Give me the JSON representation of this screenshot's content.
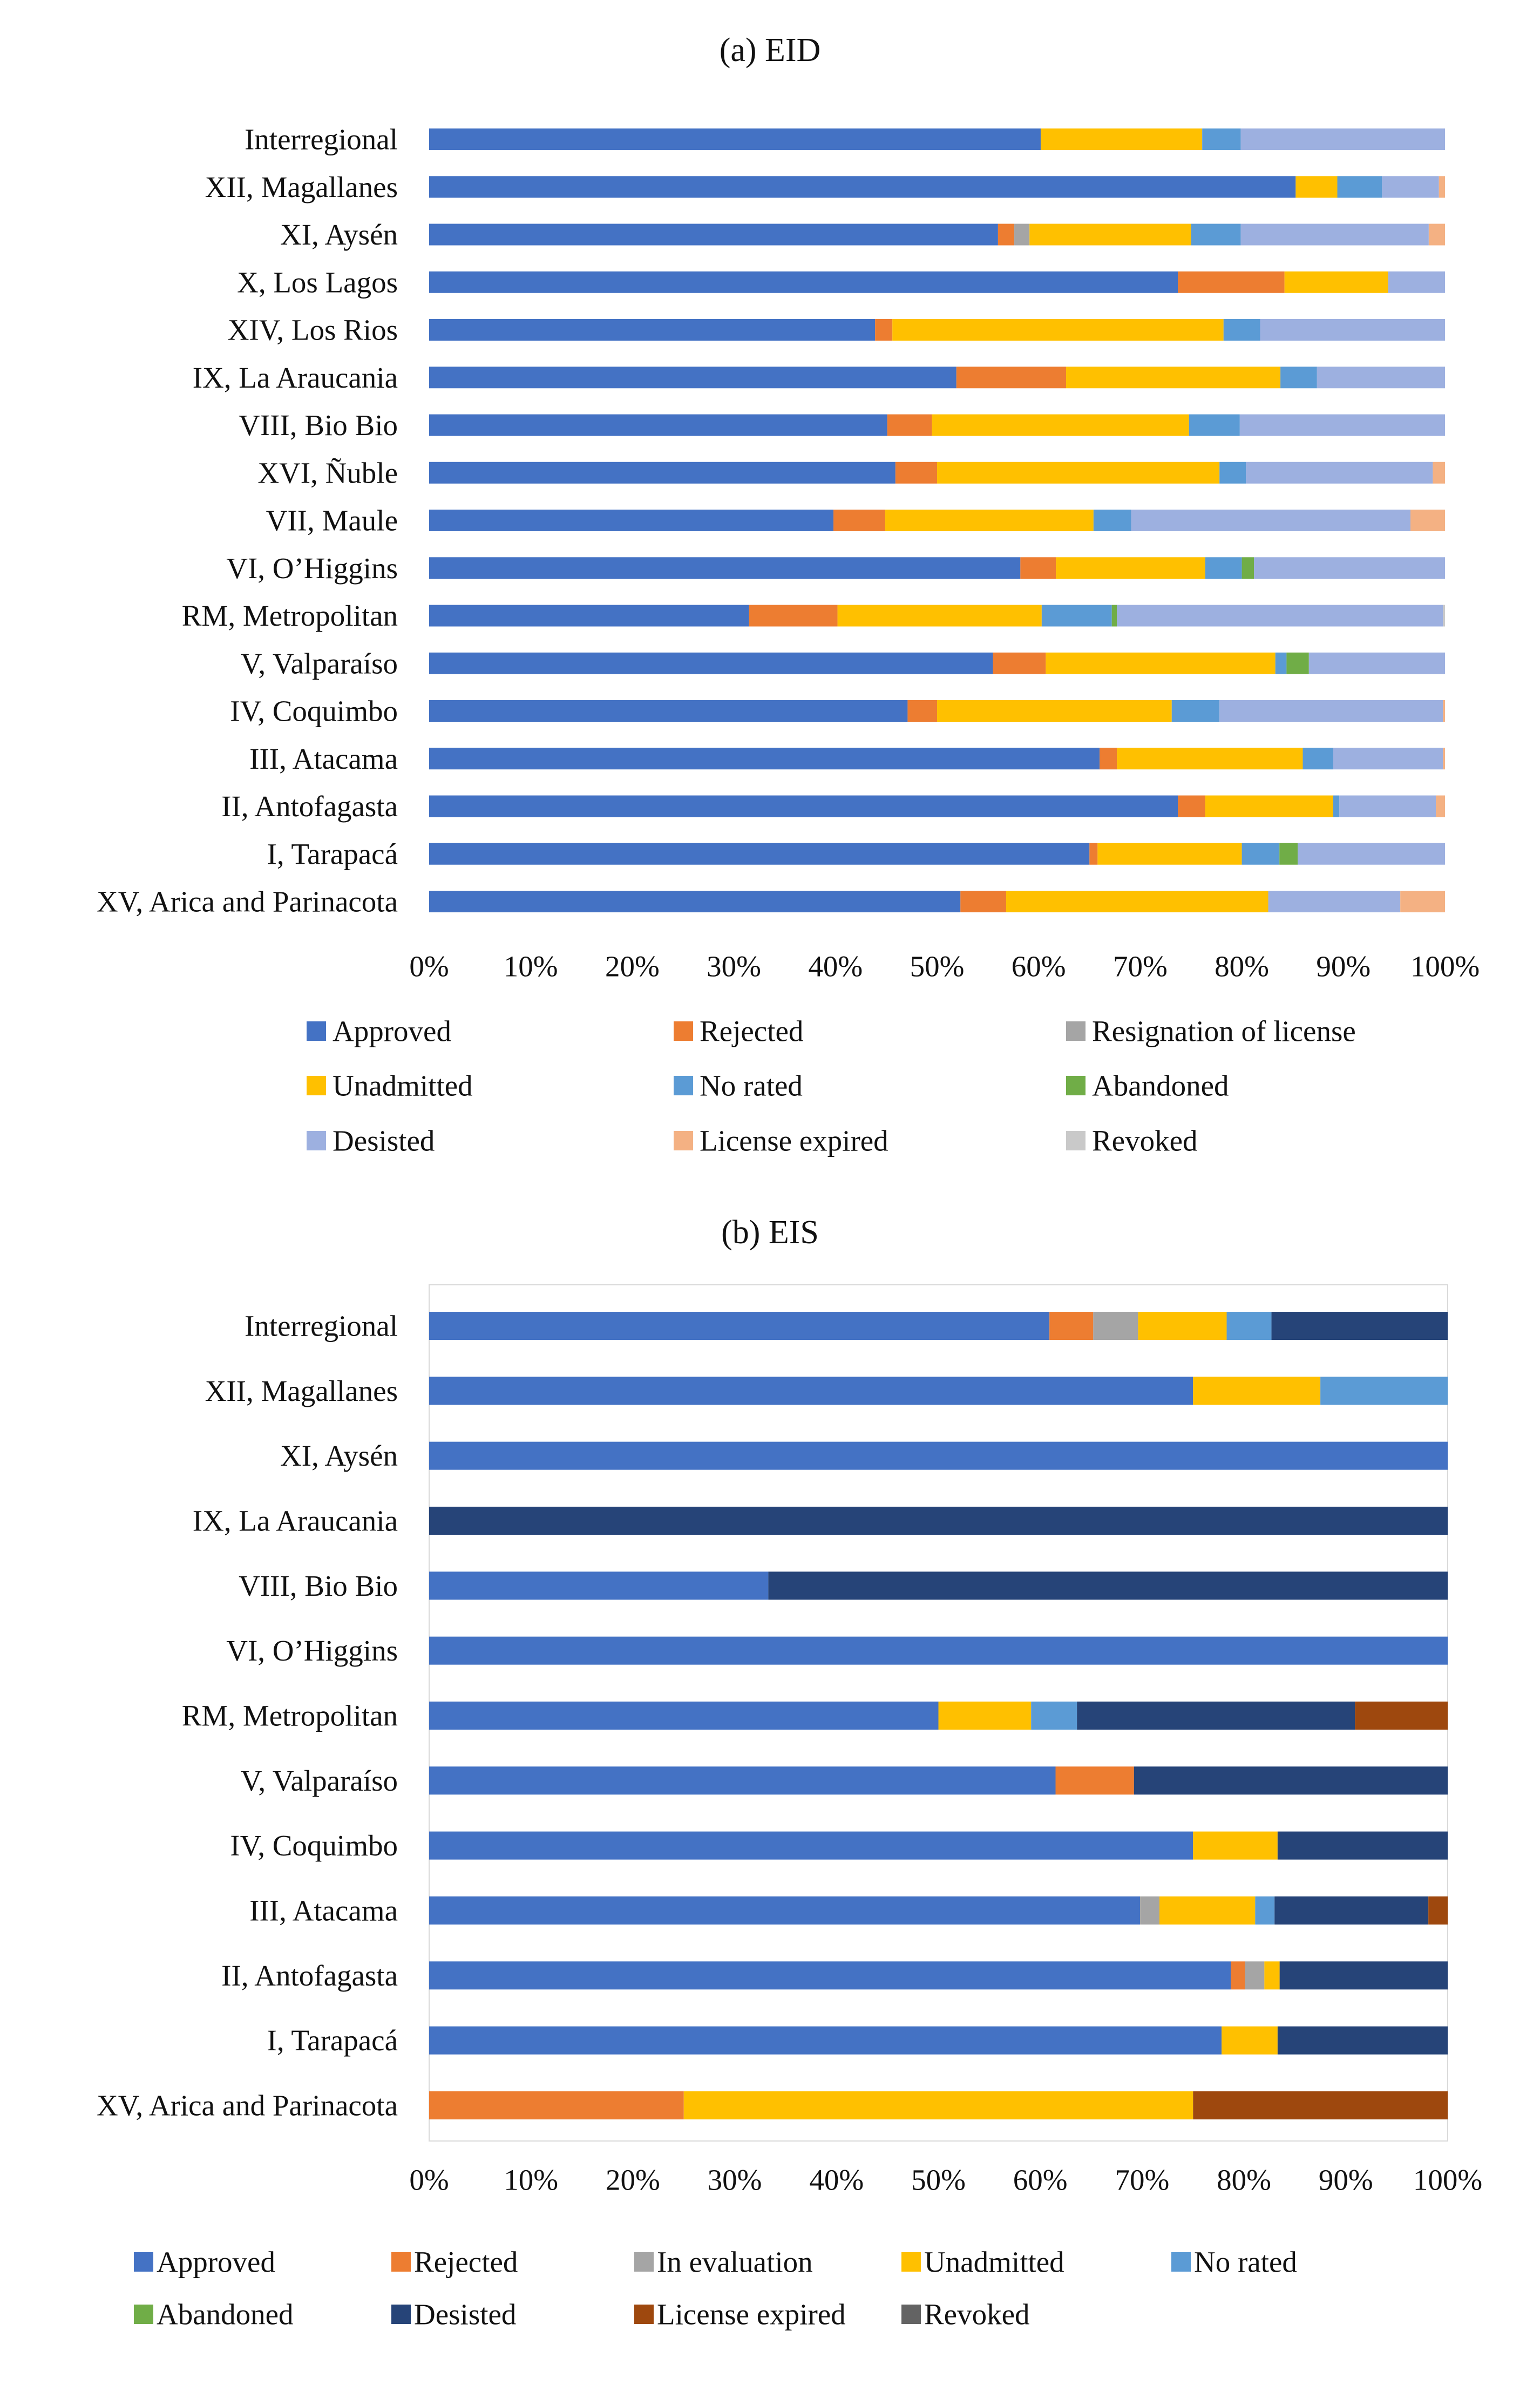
{
  "chart_data": [
    {
      "type": "bar",
      "orientation": "horizontal",
      "stacked": "percent",
      "title": "(a) EID",
      "xlim": [
        0,
        100
      ],
      "x_ticks": [
        "0%",
        "10%",
        "20%",
        "30%",
        "40%",
        "50%",
        "60%",
        "70%",
        "80%",
        "90%",
        "100%"
      ],
      "categories": [
        "Interregional",
        "XII, Magallanes",
        "XI, Aysén",
        "X, Los Lagos",
        "XIV, Los Rios",
        "IX, La Araucania",
        "VIII, Bio Bio",
        "XVI, Ñuble",
        "VII, Maule",
        "VI, O’Higgins",
        "RM, Metropolitan",
        "V, Valparaíso",
        "IV, Coquimbo",
        "III, Atacama",
        "II, Antofagasta",
        "I, Tarapacá",
        "XV, Arica and Parinacota"
      ],
      "series": [
        {
          "name": "Approved",
          "color": "#4472C4",
          "values": [
            60.2,
            85.3,
            56.0,
            73.7,
            43.9,
            51.9,
            45.1,
            45.9,
            39.8,
            58.2,
            31.5,
            55.5,
            47.1,
            66.0,
            73.7,
            65.0,
            52.3
          ]
        },
        {
          "name": "Rejected",
          "color": "#ED7D31",
          "values": [
            0.0,
            0.0,
            1.6,
            10.5,
            1.7,
            10.8,
            4.4,
            4.1,
            5.1,
            3.5,
            8.7,
            5.2,
            2.9,
            1.7,
            2.7,
            0.8,
            4.5
          ]
        },
        {
          "name": "Resignation of license",
          "color": "#A5A5A5",
          "values": [
            0,
            0,
            1.5,
            0,
            0,
            0,
            0,
            0,
            0,
            0,
            0,
            0,
            0,
            0,
            0,
            0,
            0
          ]
        },
        {
          "name": "Unadmitted",
          "color": "#FFC000",
          "values": [
            15.9,
            4.1,
            15.9,
            10.2,
            32.6,
            21.1,
            25.3,
            27.8,
            20.5,
            14.7,
            20.1,
            22.6,
            23.1,
            18.3,
            12.6,
            14.2,
            25.8
          ]
        },
        {
          "name": "No rated",
          "color": "#5B9BD5",
          "values": [
            3.8,
            4.4,
            4.9,
            0,
            3.6,
            3.6,
            5.0,
            2.6,
            3.7,
            3.6,
            6.9,
            1.1,
            4.7,
            3.0,
            0.6,
            3.7,
            0
          ]
        },
        {
          "name": "Abandoned",
          "color": "#70AD47",
          "values": [
            0,
            0,
            0,
            0,
            0,
            0,
            0,
            0,
            0,
            1.2,
            0.5,
            2.2,
            0,
            0,
            0,
            1.8,
            0
          ]
        },
        {
          "name": "Desisted",
          "color": "#9DB0E0",
          "values": [
            20.1,
            5.6,
            18.5,
            5.6,
            18.2,
            12.6,
            20.2,
            18.4,
            27.5,
            18.8,
            32.1,
            13.4,
            22.0,
            10.8,
            9.5,
            14.5,
            13.0
          ]
        },
        {
          "name": "License expired",
          "color": "#F4B183",
          "values": [
            0,
            0.6,
            1.6,
            0,
            0,
            0,
            0,
            1.2,
            3.4,
            0,
            0,
            0,
            0.2,
            0.2,
            0.9,
            0,
            4.4
          ]
        },
        {
          "name": "Revoked",
          "color": "#C9C9C9",
          "values": [
            0,
            0,
            0,
            0,
            0,
            0,
            0,
            0,
            0,
            0,
            0.2,
            0,
            0,
            0,
            0,
            0,
            0
          ]
        }
      ],
      "legend": {
        "placement": "bottom",
        "columns": 3
      }
    },
    {
      "type": "bar",
      "orientation": "horizontal",
      "stacked": "percent",
      "title": "(b) EIS",
      "xlim": [
        0,
        100
      ],
      "x_ticks": [
        "0%",
        "10%",
        "20%",
        "30%",
        "40%",
        "50%",
        "60%",
        "70%",
        "80%",
        "90%",
        "100%"
      ],
      "categories": [
        "Interregional",
        "XII, Magallanes",
        "XI, Aysén",
        "IX, La Araucania",
        "VIII, Bio Bio",
        "VI, O’Higgins",
        "RM, Metropolitan",
        "V, Valparaíso",
        "IV, Coquimbo",
        "III, Atacama",
        "II, Antofagasta",
        "I, Tarapacá",
        "XV, Arica and Parinacota"
      ],
      "series": [
        {
          "name": "Approved",
          "color": "#4472C4",
          "values": [
            60.9,
            75.0,
            100,
            0,
            33.3,
            100,
            50.0,
            61.5,
            75.0,
            69.8,
            78.7,
            77.8,
            0
          ]
        },
        {
          "name": "Rejected",
          "color": "#ED7D31",
          "values": [
            4.3,
            0,
            0,
            0,
            0,
            0,
            0,
            7.7,
            0,
            0,
            1.4,
            0,
            25.0
          ]
        },
        {
          "name": "In evaluation",
          "color": "#A5A5A5",
          "values": [
            4.4,
            0,
            0,
            0,
            0,
            0,
            0,
            0,
            0,
            1.9,
            1.9,
            0,
            0
          ]
        },
        {
          "name": "Unadmitted",
          "color": "#FFC000",
          "values": [
            8.7,
            12.5,
            0,
            0,
            0,
            0,
            9.1,
            0,
            8.3,
            9.4,
            1.5,
            5.5,
            50.0
          ]
        },
        {
          "name": "No rated",
          "color": "#5B9BD5",
          "values": [
            4.4,
            12.5,
            0,
            0,
            0,
            0,
            4.5,
            0,
            0,
            1.9,
            0,
            0,
            0
          ]
        },
        {
          "name": "Abandoned",
          "color": "#70AD47",
          "values": [
            0,
            0,
            0,
            0,
            0,
            0,
            0,
            0,
            0,
            0,
            0,
            0,
            0
          ]
        },
        {
          "name": "Desisted",
          "color": "#264478",
          "values": [
            17.3,
            0,
            0,
            100,
            66.7,
            0,
            27.3,
            30.8,
            16.7,
            15.1,
            16.5,
            16.7,
            0
          ]
        },
        {
          "name": "License expired",
          "color": "#9E480E",
          "values": [
            0,
            0,
            0,
            0,
            0,
            0,
            9.1,
            0,
            0,
            1.9,
            0,
            0,
            25.0
          ]
        },
        {
          "name": "Revoked",
          "color": "#636363",
          "values": [
            0,
            0,
            0,
            0,
            0,
            0,
            0,
            0,
            0,
            0,
            0,
            0,
            0
          ]
        }
      ],
      "legend": {
        "placement": "bottom",
        "columns": 5
      }
    }
  ]
}
